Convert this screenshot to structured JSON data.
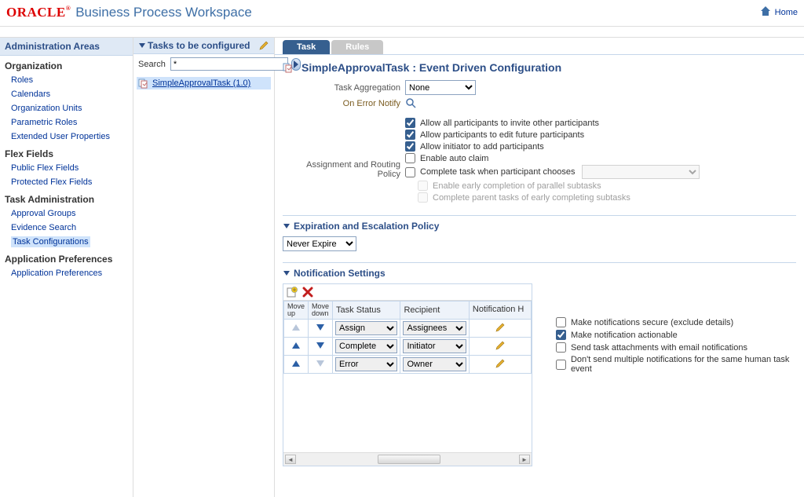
{
  "banner": {
    "logo_brand": "ORACLE",
    "logo_mark": "®",
    "app_title": "Business Process Workspace",
    "home_label": "Home"
  },
  "sidebar": {
    "header": "Administration Areas",
    "groups": [
      {
        "title": "Organization",
        "items": [
          {
            "label": "Roles",
            "sel": false
          },
          {
            "label": "Calendars",
            "sel": false
          },
          {
            "label": "Organization Units",
            "sel": false
          },
          {
            "label": "Parametric Roles",
            "sel": false
          },
          {
            "label": "Extended User Properties",
            "sel": false
          }
        ]
      },
      {
        "title": "Flex Fields",
        "items": [
          {
            "label": "Public Flex Fields",
            "sel": false
          },
          {
            "label": "Protected Flex Fields",
            "sel": false
          }
        ]
      },
      {
        "title": "Task Administration",
        "items": [
          {
            "label": "Approval Groups",
            "sel": false
          },
          {
            "label": "Evidence Search",
            "sel": false
          },
          {
            "label": "Task Configurations",
            "sel": true
          }
        ]
      },
      {
        "title": "Application Preferences",
        "items": [
          {
            "label": "Application Preferences",
            "sel": false
          }
        ]
      }
    ]
  },
  "mid": {
    "title": "Tasks to be configured",
    "search_label": "Search",
    "search_value": "*",
    "tree_item": "SimpleApprovalTask (1.0)"
  },
  "tabs": {
    "task": "Task",
    "rules": "Rules"
  },
  "page": {
    "title": "SimpleApprovalTask : Event Driven Configuration",
    "task_aggregation_label": "Task Aggregation",
    "task_aggregation_value": "None",
    "on_error_label": "On Error Notify",
    "routing_label": "Assignment and Routing Policy",
    "routing_checks": [
      {
        "label": "Allow all participants to invite other participants",
        "checked": true,
        "disabled": false,
        "indent": 0,
        "combo": false
      },
      {
        "label": "Allow participants to edit future participants",
        "checked": true,
        "disabled": false,
        "indent": 0,
        "combo": false
      },
      {
        "label": "Allow initiator to add participants",
        "checked": true,
        "disabled": false,
        "indent": 0,
        "combo": false
      },
      {
        "label": "Enable auto claim",
        "checked": false,
        "disabled": false,
        "indent": 0,
        "combo": false
      },
      {
        "label": "Complete task when participant chooses",
        "checked": false,
        "disabled": false,
        "indent": 0,
        "combo": true
      },
      {
        "label": "Enable early completion of parallel subtasks",
        "checked": false,
        "disabled": true,
        "indent": 1,
        "combo": false
      },
      {
        "label": "Complete parent tasks of early completing subtasks",
        "checked": false,
        "disabled": true,
        "indent": 1,
        "combo": false
      }
    ],
    "exp_section": "Expiration and Escalation Policy",
    "exp_value": "Never Expire",
    "notif_section": "Notification Settings",
    "table_cols": {
      "movup": "Move up",
      "movdn": "Move down",
      "status": "Task Status",
      "recipient": "Recipient",
      "header": "Notification Header"
    },
    "table_rows": [
      {
        "status": "Assign",
        "recipient": "Assignees"
      },
      {
        "status": "Complete",
        "recipient": "Initiator"
      },
      {
        "status": "Error",
        "recipient": "Owner"
      }
    ],
    "notif_opts": [
      {
        "label": "Make notifications secure (exclude details)",
        "checked": false
      },
      {
        "label": "Make notification actionable",
        "checked": true
      },
      {
        "label": "Send task attachments with email notifications",
        "checked": false
      },
      {
        "label": "Don't send multiple notifications for the same human task event",
        "checked": false
      }
    ]
  },
  "colors": {
    "oracle_red": "#d00000",
    "header_blue": "#2c4e87",
    "panel_blue": "#dfe9f5",
    "tab_active": "#365f8f",
    "tab_inactive": "#c8c8c8",
    "link": "#003399",
    "selection": "#cfe3fb"
  }
}
